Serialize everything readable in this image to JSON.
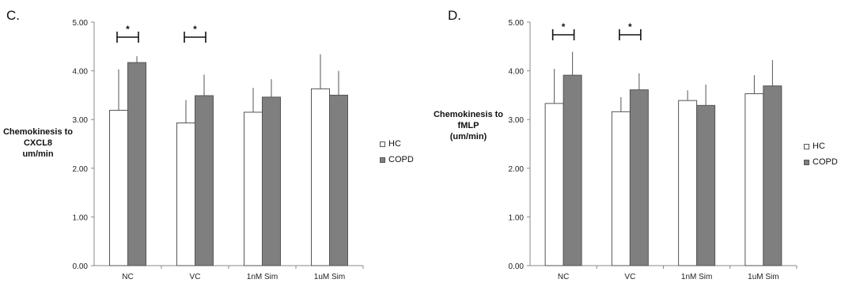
{
  "colors": {
    "hc": "#ffffff",
    "copd": "#7f7f7f",
    "stroke": "#555555",
    "axis": "#888888"
  },
  "chart_data": [
    {
      "type": "bar",
      "panel_label": "C.",
      "ylabel_lines": [
        "Chemokinesis to",
        "CXCL8",
        "um/min"
      ],
      "categories": [
        "NC",
        "VC",
        "1nM Sim",
        "1uM Sim"
      ],
      "ylim": [
        0,
        5
      ],
      "yticks": [
        "0.00",
        "1.00",
        "2.00",
        "3.00",
        "4.00",
        "5.00"
      ],
      "series": [
        {
          "name": "HC",
          "values": [
            3.19,
            2.93,
            3.15,
            3.63
          ],
          "errors": [
            0.84,
            0.47,
            0.5,
            0.71
          ]
        },
        {
          "name": "COPD",
          "values": [
            4.17,
            3.49,
            3.46,
            3.5
          ],
          "errors": [
            0.13,
            0.43,
            0.37,
            0.5
          ]
        }
      ],
      "significance": [
        {
          "category_index": 0,
          "mark": "*"
        },
        {
          "category_index": 1,
          "mark": "*"
        }
      ],
      "legend": [
        "HC",
        "COPD"
      ],
      "legend_position": "right"
    },
    {
      "type": "bar",
      "panel_label": "D.",
      "ylabel_lines": [
        "Chemokinesis to",
        "fMLP",
        "(um/min)"
      ],
      "categories": [
        "NC",
        "VC",
        "1nM Sim",
        "1uM Sim"
      ],
      "ylim": [
        0,
        5
      ],
      "yticks": [
        "0.00",
        "1.00",
        "2.00",
        "3.00",
        "4.00",
        "5.00"
      ],
      "series": [
        {
          "name": "HC",
          "values": [
            3.33,
            3.16,
            3.39,
            3.53
          ],
          "errors": [
            0.71,
            0.3,
            0.21,
            0.38
          ]
        },
        {
          "name": "COPD",
          "values": [
            3.91,
            3.61,
            3.29,
            3.69
          ],
          "errors": [
            0.48,
            0.34,
            0.43,
            0.53
          ]
        }
      ],
      "significance": [
        {
          "category_index": 0,
          "mark": "*"
        },
        {
          "category_index": 1,
          "mark": "*"
        }
      ],
      "legend": [
        "HC",
        "COPD"
      ],
      "legend_position": "right"
    }
  ]
}
